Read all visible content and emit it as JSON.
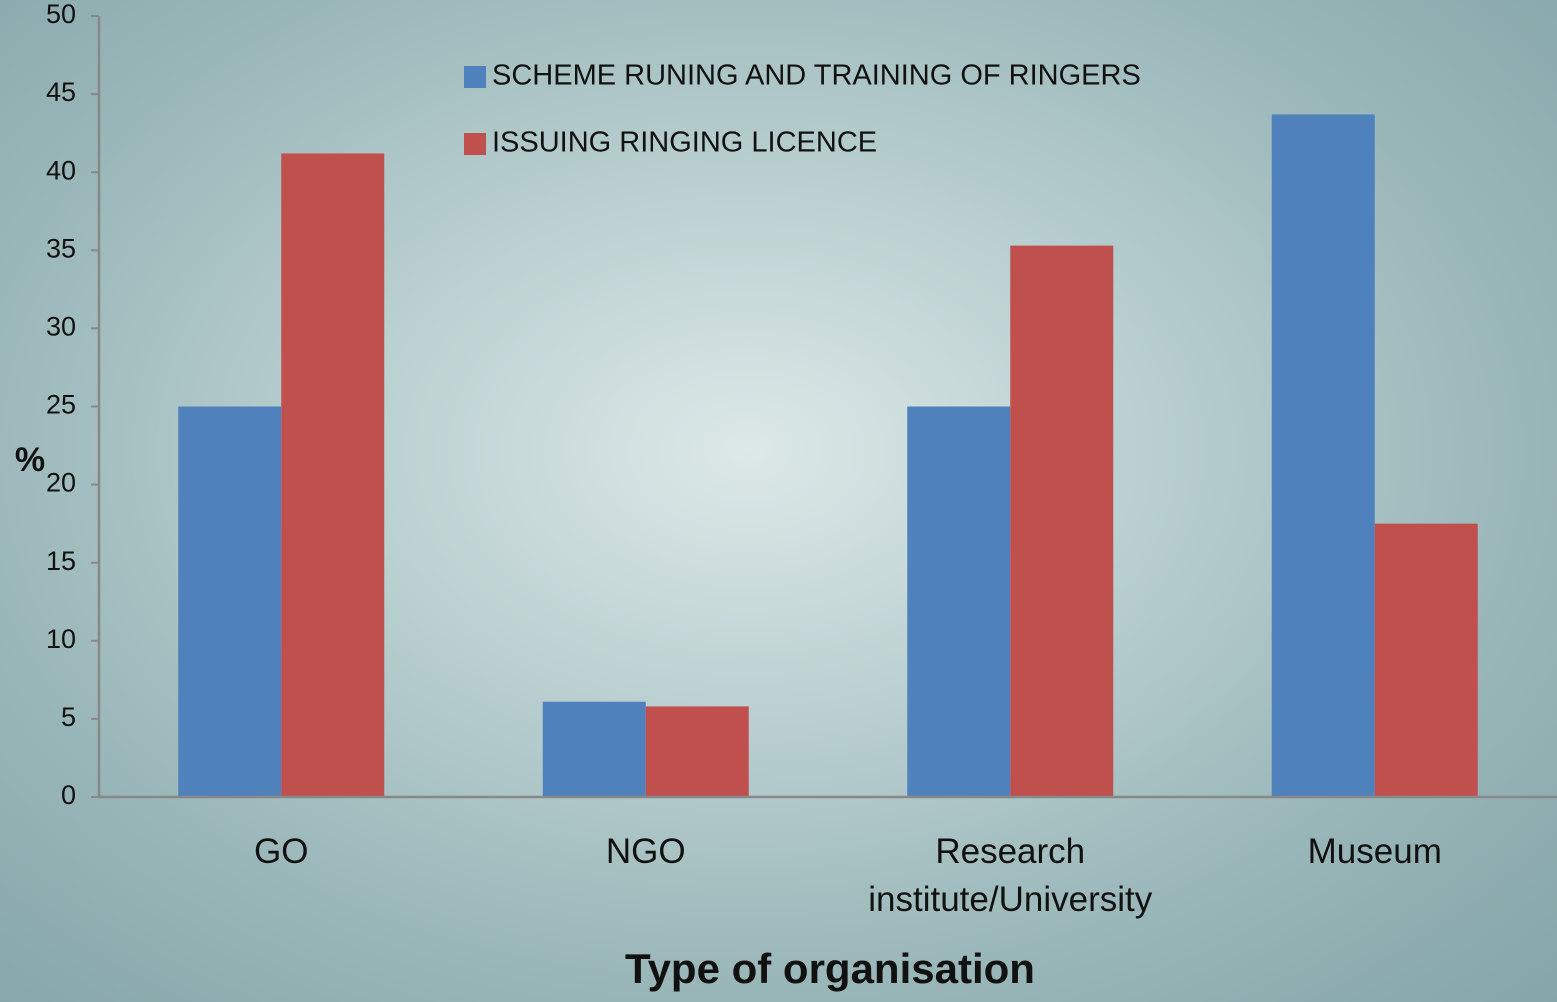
{
  "chart_data": {
    "type": "bar",
    "x_label": "Type of organisation",
    "y_label": "%",
    "categories": [
      "GO",
      "NGO",
      "Research institute/University",
      "Museum"
    ],
    "series": [
      {
        "name": "SCHEME RUNING AND TRAINING OF RINGERS",
        "color": "#4f81bd",
        "values": [
          25,
          6.1,
          25,
          43.7
        ]
      },
      {
        "name": "ISSUING RINGING LICENCE",
        "color": "#c0504d",
        "values": [
          41.2,
          5.8,
          35.3,
          17.5
        ]
      }
    ],
    "ylim": [
      0,
      50
    ],
    "yticks": [
      0,
      5,
      10,
      15,
      20,
      25,
      30,
      35,
      40,
      45,
      50
    ],
    "grid": false,
    "legend": "top"
  }
}
